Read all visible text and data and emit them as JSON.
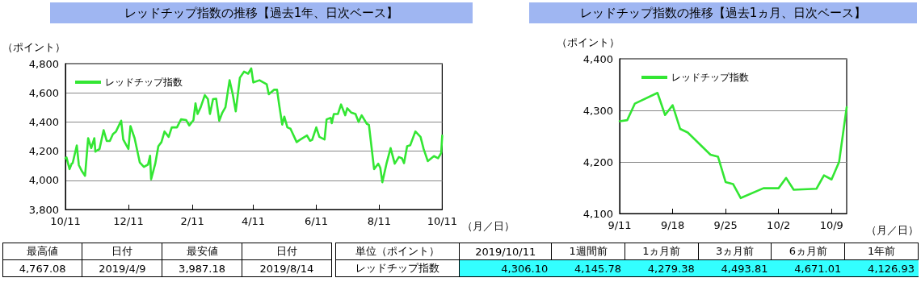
{
  "chart_data": [
    {
      "type": "line",
      "title": "レッドチップ指数の推移【過去1年、日次ベース】",
      "ylabel": "（ポイント）",
      "xlabel": "（月／日）",
      "legend": "top left",
      "grid": "y",
      "xlim": [
        "2018-10-11",
        "2019-10-11"
      ],
      "xticks": [
        {
          "value": "2018-10-11",
          "label": "10/11"
        },
        {
          "value": "2018-12-11",
          "label": "12/11"
        },
        {
          "value": "2019-02-11",
          "label": "2/11"
        },
        {
          "value": "2019-04-11",
          "label": "4/11"
        },
        {
          "value": "2019-06-11",
          "label": "6/11"
        },
        {
          "value": "2019-08-11",
          "label": "8/11"
        },
        {
          "value": "2019-10-11",
          "label": "10/11"
        }
      ],
      "ylim": [
        3800,
        4800
      ],
      "yticks": [
        {
          "value": 3800,
          "label": "3,800"
        },
        {
          "value": 4000,
          "label": "4,000"
        },
        {
          "value": 4200,
          "label": "4,200"
        },
        {
          "value": 4400,
          "label": "4,400"
        },
        {
          "value": 4600,
          "label": "4,600"
        },
        {
          "value": 4800,
          "label": "4,800"
        }
      ],
      "x": [
        "2018-10-11",
        "2018-10-12",
        "2018-10-15",
        "2018-10-17",
        "2018-10-18",
        "2018-10-22",
        "2018-10-24",
        "2018-10-27",
        "2018-10-30",
        "2018-11-02",
        "2018-11-05",
        "2018-11-08",
        "2018-11-09",
        "2018-11-13",
        "2018-11-17",
        "2018-11-20",
        "2018-11-23",
        "2018-11-26",
        "2018-11-29",
        "2018-12-04",
        "2018-12-06",
        "2018-12-11",
        "2018-12-13",
        "2018-12-17",
        "2018-12-22",
        "2018-12-26",
        "2018-12-30",
        "2019-01-01",
        "2019-01-02",
        "2019-01-06",
        "2019-01-09",
        "2019-01-12",
        "2019-01-15",
        "2019-01-19",
        "2019-01-22",
        "2019-01-27",
        "2019-01-31",
        "2019-02-05",
        "2019-02-08",
        "2019-02-12",
        "2019-02-14",
        "2019-02-16",
        "2019-02-19",
        "2019-02-23",
        "2019-02-26",
        "2019-02-28",
        "2019-03-03",
        "2019-03-06",
        "2019-03-09",
        "2019-03-12",
        "2019-03-15",
        "2019-03-19",
        "2019-03-22",
        "2019-03-25",
        "2019-03-29",
        "2019-04-02",
        "2019-04-06",
        "2019-04-09",
        "2019-04-11",
        "2019-04-17",
        "2019-04-24",
        "2019-04-26",
        "2019-05-01",
        "2019-05-04",
        "2019-05-06",
        "2019-05-09",
        "2019-05-11",
        "2019-05-14",
        "2019-05-17",
        "2019-05-23",
        "2019-05-26",
        "2019-06-02",
        "2019-06-05",
        "2019-06-07",
        "2019-06-11",
        "2019-06-14",
        "2019-06-19",
        "2019-06-21",
        "2019-06-25",
        "2019-06-26",
        "2019-06-28",
        "2019-07-02",
        "2019-07-05",
        "2019-07-09",
        "2019-07-11",
        "2019-07-15",
        "2019-07-19",
        "2019-07-22",
        "2019-07-25",
        "2019-07-30",
        "2019-08-01",
        "2019-08-06",
        "2019-08-10",
        "2019-08-12",
        "2019-08-14",
        "2019-08-18",
        "2019-08-22",
        "2019-08-26",
        "2019-08-30",
        "2019-09-02",
        "2019-09-04",
        "2019-09-07",
        "2019-09-10",
        "2019-09-15",
        "2019-09-20",
        "2019-09-23",
        "2019-09-27",
        "2019-10-03",
        "2019-10-07",
        "2019-10-10",
        "2019-10-11"
      ],
      "series": [
        {
          "name": "レッドチップ指数",
          "color": "#33e633",
          "values": [
            4151,
            4157,
            4077,
            4114,
            4118,
            4239,
            4104,
            4062,
            4031,
            4289,
            4221,
            4289,
            4197,
            4215,
            4344,
            4270,
            4270,
            4317,
            4335,
            4409,
            4280,
            4215,
            4372,
            4289,
            4123,
            4092,
            4108,
            4169,
            4007,
            4114,
            4234,
            4262,
            4335,
            4298,
            4363,
            4363,
            4418,
            4413,
            4376,
            4413,
            4528,
            4455,
            4501,
            4584,
            4557,
            4455,
            4557,
            4560,
            4409,
            4464,
            4501,
            4686,
            4593,
            4473,
            4704,
            4745,
            4731,
            4767,
            4671,
            4686,
            4658,
            4590,
            4621,
            4621,
            4520,
            4382,
            4437,
            4363,
            4354,
            4262,
            4277,
            4307,
            4271,
            4277,
            4363,
            4298,
            4280,
            4418,
            4428,
            4391,
            4455,
            4455,
            4520,
            4446,
            4494,
            4464,
            4455,
            4400,
            4446,
            4387,
            4381,
            4077,
            4114,
            4086,
            3987,
            4114,
            4221,
            4114,
            4160,
            4151,
            4118,
            4234,
            4240,
            4335,
            4298,
            4215,
            4132,
            4166,
            4151,
            4188,
            4306
          ]
        }
      ]
    },
    {
      "type": "line",
      "title": "レッドチップ指数の推移【過去1ヵ月、日次ベース】",
      "ylabel": "（ポイント）",
      "xlabel": "（月／日）",
      "legend": "top left",
      "grid": "y",
      "xlim": [
        "2019-09-11",
        "2019-10-11"
      ],
      "xticks": [
        {
          "value": "2019-09-11",
          "label": "9/11"
        },
        {
          "value": "2019-09-18",
          "label": "9/18"
        },
        {
          "value": "2019-09-25",
          "label": "9/25"
        },
        {
          "value": "2019-10-02",
          "label": "10/2"
        },
        {
          "value": "2019-10-09",
          "label": "10/9"
        }
      ],
      "ylim": [
        4100,
        4400
      ],
      "yticks": [
        {
          "value": 4100,
          "label": "4,100"
        },
        {
          "value": 4200,
          "label": "4,200"
        },
        {
          "value": 4300,
          "label": "4,300"
        },
        {
          "value": 4400,
          "label": "4,400"
        }
      ],
      "x": [
        "2019-09-11",
        "2019-09-12",
        "2019-09-13",
        "2019-09-16",
        "2019-09-17",
        "2019-09-18",
        "2019-09-19",
        "2019-09-20",
        "2019-09-23",
        "2019-09-24",
        "2019-09-25",
        "2019-09-26",
        "2019-09-27",
        "2019-09-30",
        "2019-10-02",
        "2019-10-03",
        "2019-10-04",
        "2019-10-07",
        "2019-10-08",
        "2019-10-09",
        "2019-10-10",
        "2019-10-11"
      ],
      "series": [
        {
          "name": "レッドチップ指数",
          "color": "#33e633",
          "values": [
            4279,
            4281,
            4313,
            4334,
            4291,
            4310,
            4264,
            4257,
            4214,
            4210,
            4161,
            4157,
            4130,
            4149,
            4149,
            4169,
            4146,
            4148,
            4174,
            4166,
            4200,
            4306
          ]
        }
      ]
    },
    {
      "type": "other",
      "categories": [
        "最高値",
        "日付",
        "最安値",
        "日付"
      ],
      "value_labels": [
        "4,767.08",
        "2019/4/9",
        "3,987.18",
        "2019/8/14"
      ]
    },
    {
      "type": "other",
      "ylabel": "単位（ポイント）",
      "categories": [
        "2019/10/11",
        "1週間前",
        "1ヵ月前",
        "3ヵ月前",
        "6ヵ月前",
        "1年前"
      ],
      "xlabel": "レッドチップ指数",
      "value_labels": [
        "4,306.10",
        "4,145.78",
        "4,279.38",
        "4,493.81",
        "4,671.01",
        "4,126.93"
      ]
    }
  ]
}
